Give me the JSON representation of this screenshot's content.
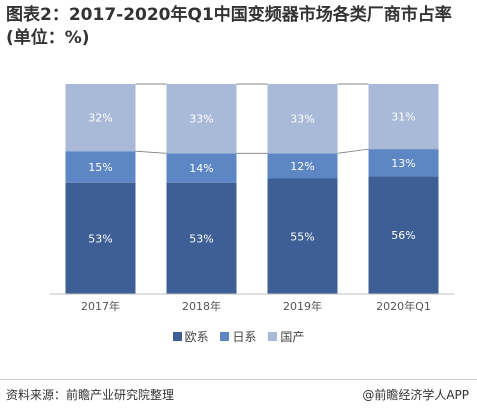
{
  "title": "图表2：2017-2020年Q1中国变频器市场各类厂商市占率(单位：%)",
  "source": "资料来源：前瞻产业研究院整理",
  "brand": "@前瞻经济学人APP",
  "colors": {
    "euro": "#3d5f96",
    "japan": "#5d87c4",
    "domestic": "#a9b9d8",
    "label": "#ffffff",
    "connector": "#7f7f7f",
    "axis": "#bfbfbf"
  },
  "chart_data": {
    "type": "bar",
    "stacked": true,
    "categories": [
      "2017年",
      "2018年",
      "2019年",
      "2020年Q1"
    ],
    "series": [
      {
        "name": "欧系",
        "values": [
          53,
          53,
          55,
          56
        ],
        "labels": [
          "53%",
          "53%",
          "55%",
          "56%"
        ]
      },
      {
        "name": "日系",
        "values": [
          15,
          14,
          12,
          13
        ],
        "labels": [
          "15%",
          "14%",
          "12%",
          "13%"
        ]
      },
      {
        "name": "国产",
        "values": [
          32,
          33,
          33,
          31
        ],
        "labels": [
          "32%",
          "33%",
          "33%",
          "31%"
        ]
      }
    ],
    "ylim": [
      0,
      100
    ],
    "legend_position": "bottom"
  }
}
